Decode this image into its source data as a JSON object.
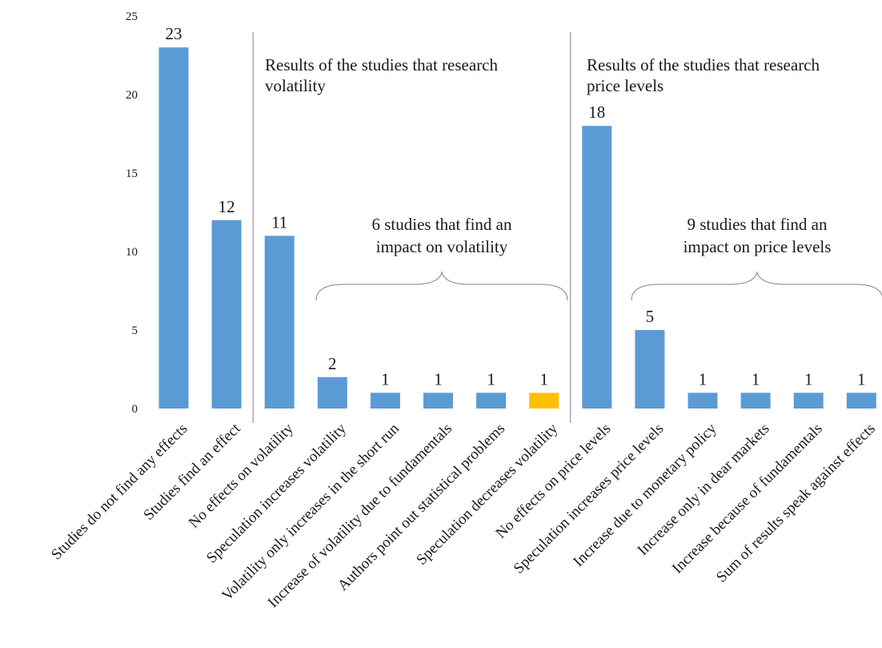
{
  "chart_data": {
    "type": "bar",
    "title": "",
    "xlabel": "",
    "ylabel": "",
    "ylim": [
      0,
      25
    ],
    "yticks": [
      0,
      5,
      10,
      15,
      20,
      25
    ],
    "grid": false,
    "legend": "none",
    "categories": [
      "Studies do not find any effects",
      "Studies find an effect",
      "No effects on volatility",
      "Speculation increases volatility",
      "Volatility only increases in the short run",
      "Increase of volatility due to fundamentals",
      "Authors point out statistical problems",
      "Speculation decreases volatility",
      "No effects on price levels",
      "Speculation increases price levels",
      "Increase due to monetary policy",
      "Increase only in dear markets",
      "Increase because of fundamentals",
      "Sum of results speak against effects"
    ],
    "values": [
      23,
      12,
      11,
      2,
      1,
      1,
      1,
      1,
      18,
      5,
      1,
      1,
      1,
      1
    ],
    "bar_colors": [
      "#5b9bd5",
      "#5b9bd5",
      "#5b9bd5",
      "#5b9bd5",
      "#5b9bd5",
      "#5b9bd5",
      "#5b9bd5",
      "#ffc000",
      "#5b9bd5",
      "#5b9bd5",
      "#5b9bd5",
      "#5b9bd5",
      "#5b9bd5",
      "#5b9bd5"
    ],
    "section_dividers_after_index": [
      1,
      7
    ],
    "annotations": {
      "volatility_section": [
        "Results of the studies that research",
        "volatility"
      ],
      "price_section": [
        "Results of the studies that research",
        "price levels"
      ],
      "volatility_brace": [
        "6 studies that find an",
        "impact on volatility"
      ],
      "price_brace": [
        "9 studies that find an",
        "impact on price levels"
      ]
    }
  }
}
